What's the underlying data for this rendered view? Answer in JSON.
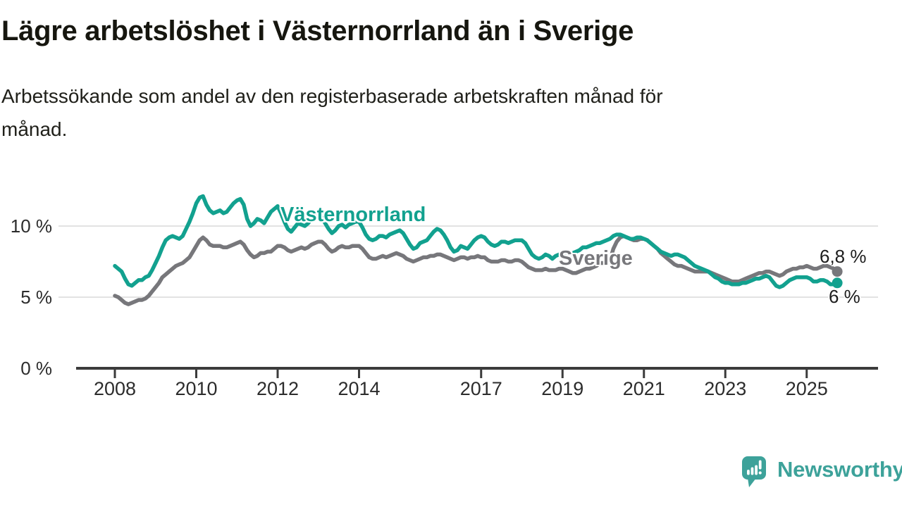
{
  "header": {
    "title": "Lägre arbetslöshet i Västernorrland än i Sverige",
    "subtitle": "Arbetssökande som andel av den registerbaserade arbetskraften månad för månad."
  },
  "chart_data": {
    "type": "line",
    "title": "Lägre arbetslöshet i Västernorrland än i Sverige",
    "unit": "%",
    "grid": "horizontal",
    "legend_position": "inline-labels",
    "ylim": [
      0,
      12.5
    ],
    "y_ticks": [
      {
        "value": 0,
        "label": "0 %"
      },
      {
        "value": 5,
        "label": "5 %"
      },
      {
        "value": 10,
        "label": "10 %"
      }
    ],
    "x_start": "2008-01",
    "x_end": "2025-10",
    "x_tick_years": [
      2008,
      2010,
      2012,
      2014,
      2017,
      2019,
      2021,
      2023,
      2025
    ],
    "x_tick_labels": [
      "2008",
      "2010",
      "2012",
      "2014",
      "2017",
      "2019",
      "2021",
      "2023",
      "2025"
    ],
    "series": [
      {
        "name": "Sverige",
        "color": "#77777b",
        "end_label": "6,8 %",
        "end_value": 6.8,
        "values": [
          5.1,
          5.0,
          4.8,
          4.6,
          4.5,
          4.6,
          4.7,
          4.8,
          4.8,
          4.9,
          5.1,
          5.4,
          5.7,
          6.0,
          6.4,
          6.6,
          6.8,
          7.0,
          7.2,
          7.3,
          7.4,
          7.6,
          7.8,
          8.2,
          8.6,
          9.0,
          9.2,
          9.0,
          8.7,
          8.6,
          8.6,
          8.6,
          8.5,
          8.5,
          8.6,
          8.7,
          8.8,
          8.9,
          8.7,
          8.3,
          8.0,
          7.8,
          7.9,
          8.1,
          8.1,
          8.2,
          8.2,
          8.4,
          8.6,
          8.6,
          8.5,
          8.3,
          8.2,
          8.3,
          8.4,
          8.5,
          8.4,
          8.5,
          8.7,
          8.8,
          8.9,
          8.9,
          8.7,
          8.4,
          8.2,
          8.3,
          8.5,
          8.6,
          8.5,
          8.5,
          8.6,
          8.6,
          8.6,
          8.4,
          8.1,
          7.8,
          7.7,
          7.7,
          7.8,
          7.9,
          7.8,
          7.9,
          8.0,
          8.1,
          8.0,
          7.9,
          7.7,
          7.6,
          7.5,
          7.6,
          7.7,
          7.8,
          7.8,
          7.9,
          7.9,
          8.0,
          8.0,
          7.9,
          7.8,
          7.7,
          7.6,
          7.7,
          7.8,
          7.8,
          7.7,
          7.8,
          7.8,
          7.9,
          7.8,
          7.8,
          7.6,
          7.5,
          7.5,
          7.5,
          7.6,
          7.6,
          7.5,
          7.5,
          7.6,
          7.6,
          7.5,
          7.3,
          7.1,
          7.0,
          6.9,
          6.9,
          6.9,
          7.0,
          6.9,
          6.9,
          6.9,
          7.0,
          7.0,
          6.9,
          6.8,
          6.7,
          6.7,
          6.8,
          6.9,
          7.0,
          7.0,
          7.1,
          7.2,
          7.4,
          7.4,
          7.4,
          7.6,
          8.4,
          8.9,
          9.2,
          9.3,
          9.2,
          9.1,
          9.0,
          9.0,
          9.1,
          9.1,
          9.0,
          8.8,
          8.6,
          8.4,
          8.1,
          7.9,
          7.7,
          7.5,
          7.3,
          7.2,
          7.2,
          7.1,
          7.0,
          6.9,
          6.8,
          6.8,
          6.8,
          6.8,
          6.8,
          6.7,
          6.6,
          6.5,
          6.4,
          6.3,
          6.2,
          6.1,
          6.1,
          6.1,
          6.2,
          6.3,
          6.4,
          6.5,
          6.6,
          6.7,
          6.7,
          6.8,
          6.8,
          6.7,
          6.6,
          6.5,
          6.6,
          6.8,
          6.9,
          7.0,
          7.0,
          7.1,
          7.1,
          7.2,
          7.1,
          7.0,
          7.0,
          7.1,
          7.2,
          7.2,
          7.1,
          7.0,
          6.8
        ]
      },
      {
        "name": "Västernorrland",
        "color": "#12a18f",
        "end_label": "6 %",
        "end_value": 6.0,
        "values": [
          7.2,
          7.0,
          6.8,
          6.3,
          5.9,
          5.8,
          6.0,
          6.2,
          6.2,
          6.4,
          6.5,
          6.9,
          7.4,
          7.9,
          8.5,
          9.0,
          9.2,
          9.3,
          9.2,
          9.1,
          9.3,
          9.8,
          10.3,
          10.9,
          11.6,
          12.0,
          12.1,
          11.5,
          11.1,
          10.9,
          11.0,
          11.1,
          10.9,
          11.0,
          11.3,
          11.6,
          11.8,
          11.9,
          11.5,
          10.5,
          10.0,
          10.2,
          10.5,
          10.4,
          10.2,
          10.6,
          11.0,
          11.2,
          11.4,
          10.9,
          10.3,
          9.8,
          9.6,
          9.9,
          10.2,
          10.1,
          10.0,
          10.2,
          10.5,
          10.7,
          10.8,
          10.6,
          10.2,
          9.8,
          9.5,
          9.7,
          10.0,
          10.1,
          9.9,
          10.1,
          10.2,
          10.3,
          10.3,
          9.9,
          9.4,
          9.1,
          9.0,
          9.1,
          9.3,
          9.3,
          9.2,
          9.4,
          9.5,
          9.6,
          9.7,
          9.5,
          9.1,
          8.7,
          8.4,
          8.5,
          8.8,
          8.9,
          9.0,
          9.3,
          9.6,
          9.8,
          9.7,
          9.4,
          9.0,
          8.5,
          8.2,
          8.3,
          8.6,
          8.5,
          8.4,
          8.7,
          9.0,
          9.2,
          9.3,
          9.2,
          8.9,
          8.7,
          8.6,
          8.7,
          8.9,
          8.9,
          8.8,
          8.9,
          9.0,
          9.0,
          9.0,
          8.8,
          8.4,
          8.0,
          7.8,
          7.7,
          7.8,
          8.0,
          7.9,
          7.7,
          7.9,
          8.0,
          8.1,
          8.1,
          8.0,
          8.1,
          8.2,
          8.3,
          8.5,
          8.5,
          8.6,
          8.7,
          8.8,
          8.8,
          8.9,
          9.0,
          9.1,
          9.3,
          9.4,
          9.4,
          9.3,
          9.2,
          9.1,
          9.1,
          9.2,
          9.2,
          9.1,
          9.0,
          8.8,
          8.6,
          8.4,
          8.2,
          8.1,
          8.0,
          7.9,
          8.0,
          8.0,
          7.9,
          7.8,
          7.6,
          7.4,
          7.2,
          7.1,
          7.0,
          6.9,
          6.8,
          6.6,
          6.4,
          6.3,
          6.1,
          6.0,
          6.0,
          5.9,
          5.9,
          5.9,
          6.0,
          6.0,
          6.1,
          6.2,
          6.3,
          6.3,
          6.4,
          6.5,
          6.4,
          6.1,
          5.8,
          5.7,
          5.8,
          6.0,
          6.2,
          6.3,
          6.4,
          6.4,
          6.4,
          6.4,
          6.3,
          6.1,
          6.1,
          6.2,
          6.2,
          6.1,
          5.9,
          5.9,
          6.0
        ]
      }
    ],
    "colors": {
      "grid": "#d8d8d8",
      "axis": "#3b3b3b",
      "tick_text": "#2c2c2c"
    }
  },
  "branding": {
    "name": "Newsworthy",
    "logo_color": "#3da29a",
    "logo_icon": "speech-bubble-bar-chart-exclamation"
  }
}
